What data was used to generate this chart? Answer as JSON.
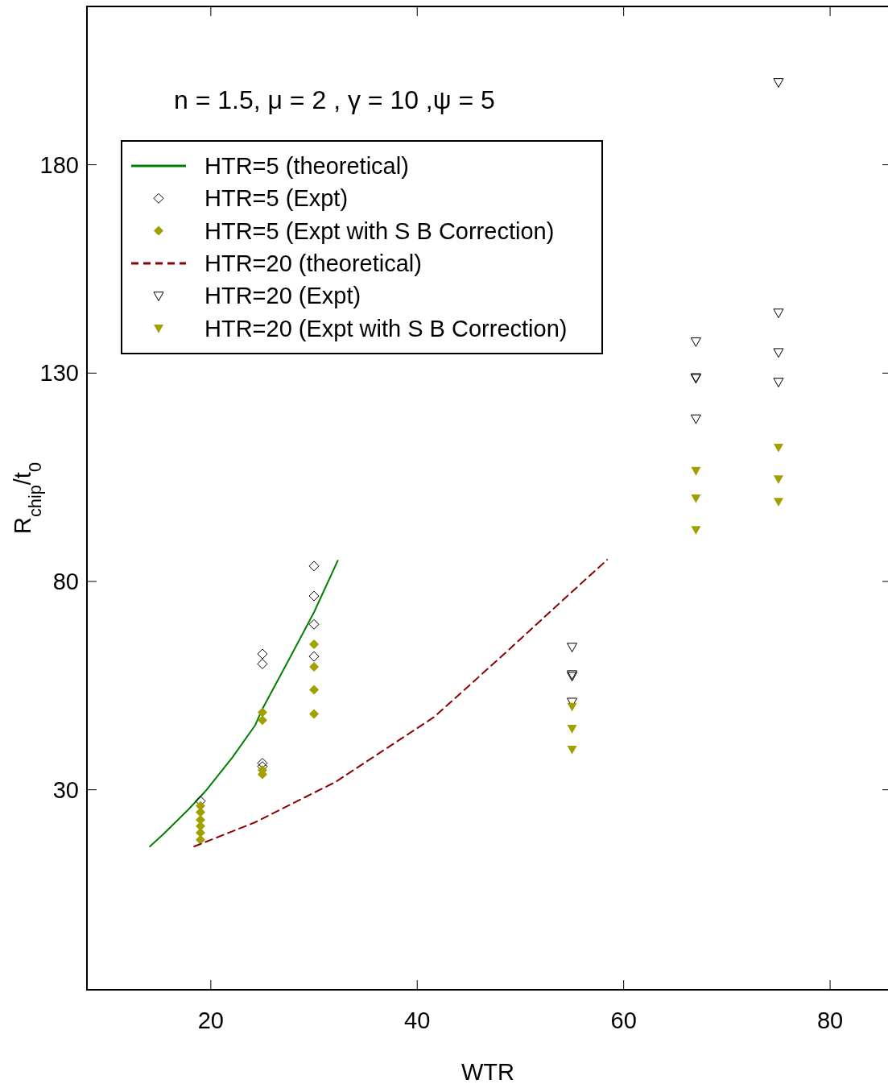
{
  "chart_data": {
    "type": "scatter",
    "xlabel": "WTR",
    "ylabel": "R$_{chip}$/t$_{0}$",
    "annotations": [
      "n = 1.5,  μ = 2 , γ = 10 ,ψ = 5"
    ],
    "xlim": [
      8,
      86
    ],
    "ylim": [
      -18,
      218
    ],
    "xticks": [
      20,
      40,
      60,
      80
    ],
    "yticks": [
      30,
      80,
      130,
      180
    ],
    "grid": false,
    "legend": "top left",
    "series": [
      {
        "name": "HTR=5 (theoretical)",
        "type": "line",
        "color": "#008000",
        "line_style": "solid",
        "x": [
          14.1,
          15.3,
          17.8,
          19.6,
          22.1,
          24.3,
          25,
          27.6,
          30,
          32.3
        ],
        "values": [
          16.4,
          19.1,
          25.2,
          30,
          37.8,
          45.5,
          49.4,
          61.4,
          72.6,
          85
        ]
      },
      {
        "name": "HTR=5 (Expt)",
        "color": "#000000",
        "marker": "diamond",
        "x": [
          19,
          25,
          25,
          25,
          25,
          30,
          30,
          30,
          30
        ],
        "values": [
          27.3,
          62.6,
          60.2,
          36.4,
          35.6,
          83.7,
          76.5,
          69.7,
          62
        ]
      },
      {
        "name": "HTR=5 (Expt with S B Correction)",
        "color": "#a0a000",
        "marker": "diamond",
        "x": [
          19,
          19,
          19,
          19,
          19,
          19,
          25,
          25,
          25,
          25,
          30,
          30,
          30,
          30
        ],
        "values": [
          26.1,
          24.6,
          22.8,
          21.3,
          19.7,
          18,
          48.6,
          46.7,
          34.7,
          33.7,
          64.9,
          59.5,
          54,
          48.2
        ]
      },
      {
        "name": "HTR=20 (theoretical)",
        "type": "line",
        "color": "#8b0000",
        "line_style": "dashed",
        "x": [
          18.4,
          24.3,
          32.1,
          41.6,
          47.9,
          54.1,
          58.4
        ],
        "values": [
          16.4,
          22.2,
          31.9,
          47.4,
          61.4,
          75.5,
          85.2
        ]
      },
      {
        "name": "HTR=20 (Expt)",
        "color": "#000000",
        "marker": "triangle",
        "x": [
          55,
          55,
          55,
          55,
          67,
          67,
          67,
          67,
          75,
          75,
          75,
          75
        ],
        "values": [
          64.3,
          57.7,
          57.3,
          51.1,
          137.6,
          129,
          128.8,
          119.1,
          199.8,
          144.5,
          135,
          127.9
        ]
      },
      {
        "name": "HTR=20 (Expt with S B Correction)",
        "color": "#a0a000",
        "marker": "triangle",
        "x": [
          55,
          55,
          55,
          67,
          67,
          67,
          75,
          75,
          75
        ],
        "values": [
          50,
          44.7,
          39.7,
          106.6,
          100,
          92.4,
          112.2,
          104.6,
          99.2
        ]
      }
    ]
  }
}
